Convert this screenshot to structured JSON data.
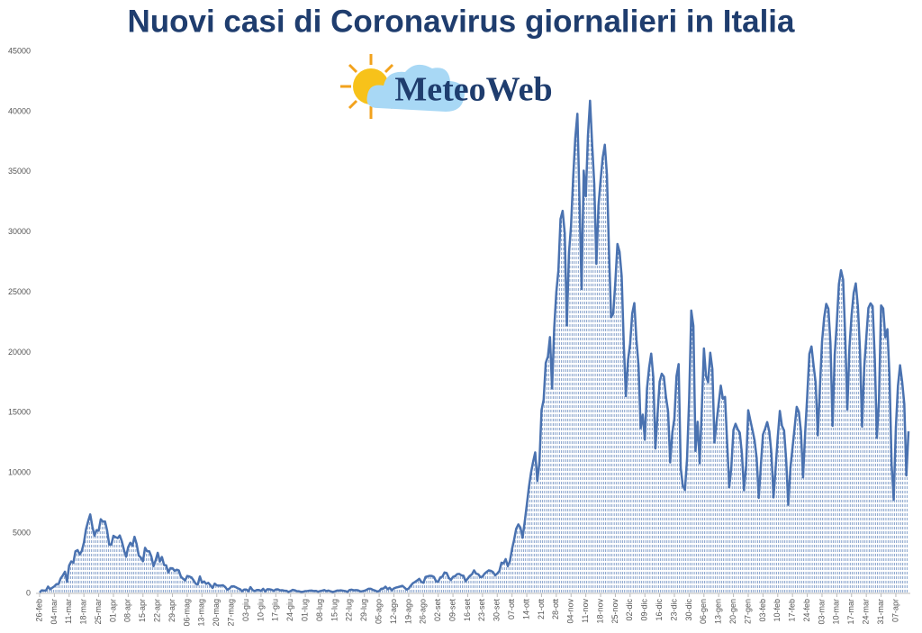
{
  "title": "Nuovi casi di Coronavirus giornalieri in Italia",
  "logo_text": "MeteoWeb",
  "chart_data": {
    "type": "line",
    "color": "#4a72b0",
    "fill": "dashed",
    "grid": false,
    "ylim": [
      0,
      45000
    ],
    "yticks": [
      0,
      5000,
      10000,
      15000,
      20000,
      25000,
      30000,
      35000,
      40000,
      45000
    ],
    "categories": [
      "26-feb",
      null,
      null,
      null,
      null,
      null,
      null,
      "04-mar",
      null,
      null,
      null,
      null,
      null,
      null,
      "11-mar",
      null,
      null,
      null,
      null,
      null,
      null,
      "18-mar",
      null,
      null,
      null,
      null,
      null,
      null,
      "25-mar",
      null,
      null,
      null,
      null,
      null,
      null,
      "01-apr",
      null,
      null,
      null,
      null,
      null,
      null,
      "08-apr",
      null,
      null,
      null,
      null,
      null,
      null,
      "15-apr",
      null,
      null,
      null,
      null,
      null,
      null,
      "22-apr",
      null,
      null,
      null,
      null,
      null,
      null,
      "29-apr",
      null,
      null,
      null,
      null,
      null,
      null,
      "06-mag",
      null,
      null,
      null,
      null,
      null,
      null,
      "13-mag",
      null,
      null,
      null,
      null,
      null,
      null,
      "20-mag",
      null,
      null,
      null,
      null,
      null,
      null,
      "27-mag",
      null,
      null,
      null,
      null,
      null,
      null,
      "03-giu",
      null,
      null,
      null,
      null,
      null,
      null,
      "10-giu",
      null,
      null,
      null,
      null,
      null,
      null,
      "17-giu",
      null,
      null,
      null,
      null,
      null,
      null,
      "24-giu",
      null,
      null,
      null,
      null,
      null,
      null,
      "01-lug",
      null,
      null,
      null,
      null,
      null,
      null,
      "08-lug",
      null,
      null,
      null,
      null,
      null,
      null,
      "15-lug",
      null,
      null,
      null,
      null,
      null,
      null,
      "22-lug",
      null,
      null,
      null,
      null,
      null,
      null,
      "29-lug",
      null,
      null,
      null,
      null,
      null,
      null,
      "05-ago",
      null,
      null,
      null,
      null,
      null,
      null,
      "12-ago",
      null,
      null,
      null,
      null,
      null,
      null,
      "19-ago",
      null,
      null,
      null,
      null,
      null,
      null,
      "26-ago",
      null,
      null,
      null,
      null,
      null,
      null,
      "02-set",
      null,
      null,
      null,
      null,
      null,
      null,
      "09-set",
      null,
      null,
      null,
      null,
      null,
      null,
      "16-set",
      null,
      null,
      null,
      null,
      null,
      null,
      "23-set",
      null,
      null,
      null,
      null,
      null,
      null,
      "30-set",
      null,
      null,
      null,
      null,
      null,
      null,
      "07-ott",
      null,
      null,
      null,
      null,
      null,
      null,
      "14-ott",
      null,
      null,
      null,
      null,
      null,
      null,
      "21-ott",
      null,
      null,
      null,
      null,
      null,
      null,
      "28-ott",
      null,
      null,
      null,
      null,
      null,
      null,
      "04-nov",
      null,
      null,
      null,
      null,
      null,
      null,
      "11-nov",
      null,
      null,
      null,
      null,
      null,
      null,
      "18-nov",
      null,
      null,
      null,
      null,
      null,
      null,
      "25-nov",
      null,
      null,
      null,
      null,
      null,
      null,
      "02-dic",
      null,
      null,
      null,
      null,
      null,
      null,
      "09-dic",
      null,
      null,
      null,
      null,
      null,
      null,
      "16-dic",
      null,
      null,
      null,
      null,
      null,
      null,
      "23-dic",
      null,
      null,
      null,
      null,
      null,
      null,
      "30-dic",
      null,
      null,
      null,
      null,
      null,
      null,
      "06-gen",
      null,
      null,
      null,
      null,
      null,
      null,
      "13-gen",
      null,
      null,
      null,
      null,
      null,
      null,
      "20-gen",
      null,
      null,
      null,
      null,
      null,
      null,
      "27-gen",
      null,
      null,
      null,
      null,
      null,
      null,
      "03-feb",
      null,
      null,
      null,
      null,
      null,
      null,
      "10-feb",
      null,
      null,
      null,
      null,
      null,
      null,
      "17-feb",
      null,
      null,
      null,
      null,
      null,
      null,
      "24-feb",
      null,
      null,
      null,
      null,
      null,
      null,
      "03-mar",
      null,
      null,
      null,
      null,
      null,
      null,
      "10-mar",
      null,
      null,
      null,
      null,
      null,
      null,
      "17-mar",
      null,
      null,
      null,
      null,
      null,
      null,
      "24-mar",
      null,
      null,
      null,
      null,
      null,
      null,
      "31-mar",
      null,
      null,
      null,
      null,
      null,
      null,
      "07-apr",
      null,
      null,
      null,
      null,
      null,
      null
    ],
    "values": [
      78,
      250,
      238,
      240,
      566,
      342,
      466,
      587,
      769,
      778,
      1247,
      1492,
      1797,
      977,
      2313,
      2651,
      2547,
      3497,
      3590,
      3233,
      3526,
      4207,
      5322,
      5986,
      6557,
      5560,
      4789,
      5249,
      5210,
      6153,
      5959,
      5974,
      5217,
      4050,
      4053,
      4782,
      4668,
      4585,
      4805,
      4316,
      3599,
      3039,
      3836,
      4204,
      3951,
      4694,
      4092,
      3153,
      2972,
      2667,
      3786,
      3493,
      3491,
      3047,
      2256,
      2729,
      3370,
      2646,
      3021,
      2357,
      2324,
      1739,
      2091,
      2086,
      1872,
      1965,
      1900,
      1389,
      1221,
      1075,
      1444,
      1401,
      1327,
      1083,
      802,
      744,
      1402,
      888,
      992,
      789,
      875,
      675,
      451,
      813,
      665,
      642,
      652,
      669,
      531,
      300,
      397,
      584,
      593,
      516,
      416,
      355,
      178,
      318,
      321,
      177,
      518,
      270,
      197,
      280,
      283,
      202,
      379,
      163,
      346,
      338,
      301,
      210,
      329,
      333,
      251,
      262,
      224,
      218,
      122,
      190,
      296,
      259,
      175,
      174,
      126,
      142,
      187,
      201,
      223,
      235,
      192,
      208,
      138,
      193,
      229,
      276,
      188,
      234,
      169,
      114,
      162,
      230,
      233,
      249,
      219,
      190,
      129,
      282,
      306,
      252,
      275,
      255,
      170,
      181,
      212,
      289,
      386,
      379,
      295,
      239,
      159,
      190,
      384,
      402,
      552,
      347,
      463,
      259,
      412,
      481,
      523,
      574,
      629,
      479,
      320,
      403,
      642,
      845,
      947,
      1071,
      1210,
      953,
      878,
      1366,
      1411,
      1462,
      1444,
      1365,
      996,
      978,
      1326,
      1397,
      1733,
      1695,
      1297,
      1108,
      1370,
      1434,
      1597,
      1616,
      1501,
      1458,
      1008,
      1229,
      1452,
      1585,
      1907,
      1638,
      1587,
      1350,
      1392,
      1640,
      1786,
      1912,
      1869,
      1766,
      1494,
      1648,
      1851,
      2548,
      2499,
      2844,
      2257,
      2677,
      3678,
      4458,
      5372,
      5724,
      5456,
      4619,
      5901,
      7332,
      8804,
      10010,
      10925,
      11705,
      9338,
      10874,
      15199,
      16079,
      19143,
      19644,
      21273,
      17012,
      21994,
      24991,
      26831,
      31084,
      31758,
      29907,
      22253,
      28244,
      30550,
      34505,
      37809,
      39811,
      32616,
      25271,
      35098,
      32961,
      37978,
      40902,
      37255,
      33979,
      27354,
      32191,
      34283,
      36176,
      37242,
      34767,
      28337,
      22930,
      23232,
      25853,
      29003,
      28352,
      26323,
      20648,
      16377,
      19350,
      20709,
      23225,
      24099,
      21052,
      18887,
      13720,
      14842,
      12756,
      16999,
      18727,
      19903,
      17938,
      12030,
      14844,
      17572,
      18236,
      17992,
      16308,
      15104,
      10872,
      13318,
      14522,
      18040,
      19037,
      10407,
      8913,
      8585,
      11212,
      16202,
      23477,
      22211,
      11831,
      14245,
      10800,
      15378,
      20331,
      18020,
      17533,
      19978,
      18627,
      12532,
      14242,
      15774,
      17246,
      16146,
      16310,
      12545,
      8824,
      10497,
      13571,
      14078,
      13633,
      13331,
      11629,
      8562,
      10593,
      15204,
      14372,
      13574,
      12715,
      11252,
      7925,
      10630,
      13189,
      13659,
      14218,
      13442,
      11641,
      7970,
      10404,
      12956,
      15146,
      13908,
      13532,
      11068,
      7351,
      10386,
      12074,
      13762,
      15479,
      15074,
      13452,
      9630,
      13314,
      16424,
      19886,
      20499,
      18916,
      17455,
      13114,
      17083,
      20884,
      22865,
      24036,
      23641,
      20765,
      13902,
      19749,
      22409,
      25673,
      26824,
      26062,
      21315,
      15267,
      20396,
      23059,
      24935,
      25735,
      23832,
      20159,
      13846,
      18765,
      21267,
      23696,
      24076,
      23839,
      19611,
      12916,
      16017,
      23904,
      23649,
      21261,
      21932,
      18025,
      10680,
      7767,
      13708,
      17221,
      18938,
      17567,
      15746,
      9789,
      13447
    ]
  }
}
